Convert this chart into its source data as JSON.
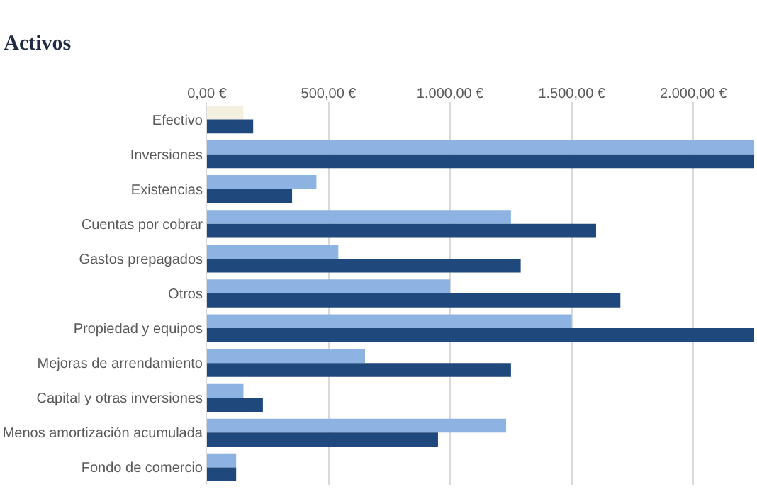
{
  "chart_data": {
    "type": "bar",
    "orientation": "horizontal",
    "title": "Activos",
    "categories": [
      "Efectivo",
      "Inversiones",
      "Existencias",
      "Cuentas por cobrar",
      "Gastos prepagados",
      "Otros",
      "Propiedad y equipos",
      "Mejoras de arrendamiento",
      "Capital y otras inversiones",
      "Menos amortización acumulada",
      "Fondo de comercio"
    ],
    "series": [
      {
        "color": "#8db3e2",
        "colors": [
          "#f3f0e0",
          "#8db3e2",
          "#8db3e2",
          "#8db3e2",
          "#8db3e2",
          "#8db3e2",
          "#8db3e2",
          "#8db3e2",
          "#8db3e2",
          "#8db3e2",
          "#8db3e2"
        ],
        "values": [
          150,
          2250,
          450,
          1250,
          540,
          1000,
          1500,
          650,
          150,
          1230,
          120
        ]
      },
      {
        "color": "#1f497d",
        "values": [
          190,
          2250,
          350,
          1600,
          1290,
          1700,
          2250,
          1250,
          230,
          950,
          120
        ]
      }
    ],
    "xlim": [
      0,
      2250
    ],
    "xticks": [
      {
        "value": 0,
        "label": "0,00 €"
      },
      {
        "value": 500,
        "label": "500,00 €"
      },
      {
        "value": 1000,
        "label": "1.000,00 €"
      },
      {
        "value": 1500,
        "label": "1.500,00 €"
      },
      {
        "value": 2000,
        "label": "2.000,00 €"
      }
    ],
    "grid": "x"
  }
}
